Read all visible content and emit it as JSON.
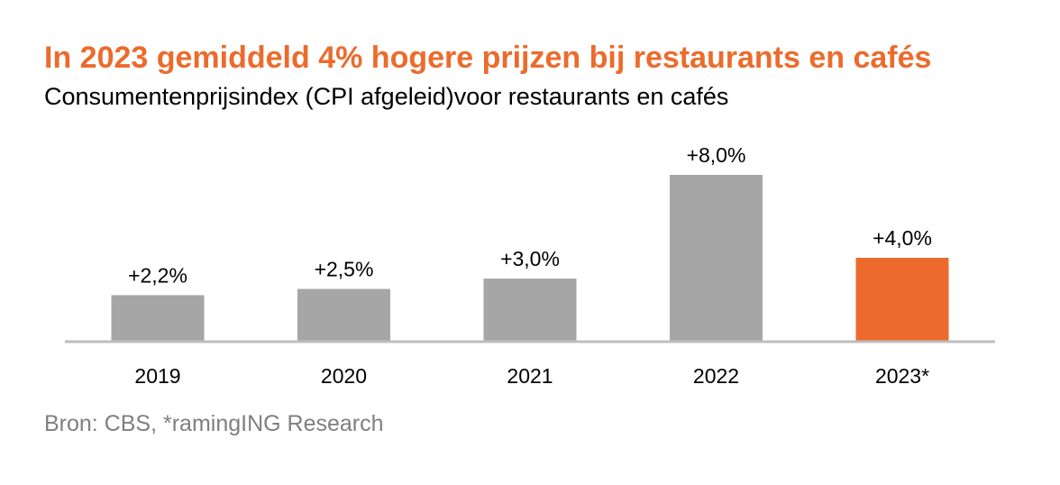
{
  "chart_data": {
    "type": "bar",
    "title": "In 2023 gemiddeld 4% hogere prijzen bij restaurants en cafés",
    "subtitle": "Consumentenprijsindex (CPI afgeleid)voor restaurants en cafés",
    "categories": [
      "2019",
      "2020",
      "2021",
      "2022",
      "2023*"
    ],
    "values": [
      2.2,
      2.5,
      3.0,
      8.0,
      4.0
    ],
    "data_labels": [
      "+2,2%",
      "+2,5%",
      "+3,0%",
      "+8,0%",
      "+4,0%"
    ],
    "highlight_index": 4,
    "colors": {
      "bar": "#a6a6a6",
      "highlight": "#ec6b2c",
      "title": "#ec6b2c",
      "axis": "#bfbfbf",
      "source": "#7f7f7f"
    },
    "ylim": [
      0,
      8.0
    ],
    "grid": false,
    "legend": "none"
  },
  "source": "Bron: CBS, *ramingING Research"
}
